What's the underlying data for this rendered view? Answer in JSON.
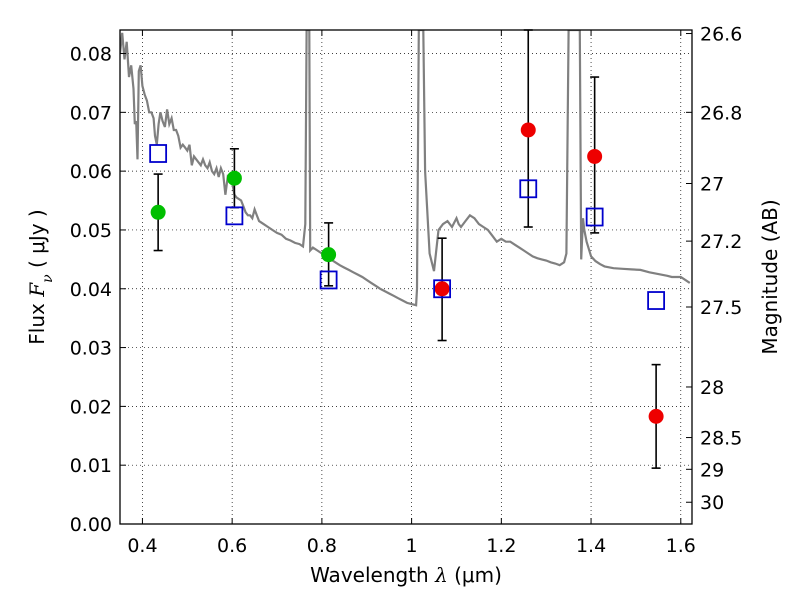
{
  "chart_data": {
    "type": "scatter",
    "xlabel": {
      "prefix": "Wavelength  ",
      "symbol": "λ",
      "unit": " (μm)"
    },
    "ylabel": {
      "prefix": "Flux  ",
      "symbol": "F",
      "sub": "ν",
      "unit": "  ( μJy )"
    },
    "y2label": "Magnitude (AB)",
    "xlim": [
      0.35,
      1.625
    ],
    "ylim": [
      0.0,
      0.084
    ],
    "grid": true,
    "x_ticks": [
      0.4,
      0.6,
      0.8,
      1.0,
      1.2,
      1.4,
      1.6
    ],
    "x_tick_labels": [
      "0.4",
      "0.6",
      "0.8",
      "1",
      "1.2",
      "1.4",
      "1.6"
    ],
    "y_ticks": [
      0.0,
      0.01,
      0.02,
      0.03,
      0.04,
      0.05,
      0.06,
      0.07,
      0.08
    ],
    "y_tick_labels": [
      "0.00",
      "0.01",
      "0.02",
      "0.03",
      "0.04",
      "0.05",
      "0.06",
      "0.07",
      "0.08"
    ],
    "y2_ticks": [
      {
        "label": "26.6",
        "flux": 0.0834
      },
      {
        "label": "26.8",
        "flux": 0.07
      },
      {
        "label": "27",
        "flux": 0.0579
      },
      {
        "label": "27.2",
        "flux": 0.0481
      },
      {
        "label": "27.5",
        "flux": 0.0369
      },
      {
        "label": "28",
        "flux": 0.0233
      },
      {
        "label": "28.5",
        "flux": 0.0147
      },
      {
        "label": "29",
        "flux": 0.0093
      },
      {
        "label": "30",
        "flux": 0.0037
      }
    ],
    "colors": {
      "green": "#00bf00",
      "red": "#ee0000",
      "blue": "#0000cc",
      "model": "#808080",
      "error": "#000000"
    },
    "series": [
      {
        "marker": "circle",
        "color": "green",
        "points": [
          {
            "x": 0.435,
            "y": 0.053,
            "lo": 0.0465,
            "hi": 0.0595
          },
          {
            "x": 0.605,
            "y": 0.0588,
            "lo": 0.0538,
            "hi": 0.0638
          },
          {
            "x": 0.815,
            "y": 0.0458,
            "lo": 0.0405,
            "hi": 0.0512
          }
        ]
      },
      {
        "marker": "circle",
        "color": "red",
        "points": [
          {
            "x": 1.068,
            "y": 0.04,
            "lo": 0.0312,
            "hi": 0.0486
          },
          {
            "x": 1.26,
            "y": 0.067,
            "lo": 0.0505,
            "hi": 0.084
          },
          {
            "x": 1.408,
            "y": 0.0625,
            "lo": 0.0495,
            "hi": 0.076
          },
          {
            "x": 1.545,
            "y": 0.0183,
            "lo": 0.0095,
            "hi": 0.0271
          }
        ]
      },
      {
        "marker": "open-square",
        "color": "blue",
        "points": [
          {
            "x": 0.435,
            "y": 0.063
          },
          {
            "x": 0.605,
            "y": 0.0524
          },
          {
            "x": 0.815,
            "y": 0.0415
          },
          {
            "x": 1.068,
            "y": 0.04
          },
          {
            "x": 1.26,
            "y": 0.057
          },
          {
            "x": 1.408,
            "y": 0.0522
          },
          {
            "x": 1.545,
            "y": 0.038
          }
        ]
      }
    ],
    "model_spectrum": [
      [
        0.35,
        0.08
      ],
      [
        0.355,
        0.0835
      ],
      [
        0.36,
        0.079
      ],
      [
        0.365,
        0.082
      ],
      [
        0.37,
        0.076
      ],
      [
        0.375,
        0.078
      ],
      [
        0.38,
        0.074
      ],
      [
        0.383,
        0.068
      ],
      [
        0.386,
        0.0685
      ],
      [
        0.389,
        0.062
      ],
      [
        0.392,
        0.077
      ],
      [
        0.396,
        0.078
      ],
      [
        0.4,
        0.0745
      ],
      [
        0.405,
        0.073
      ],
      [
        0.41,
        0.072
      ],
      [
        0.415,
        0.07
      ],
      [
        0.42,
        0.07
      ],
      [
        0.425,
        0.069
      ],
      [
        0.428,
        0.066
      ],
      [
        0.432,
        0.0645
      ],
      [
        0.436,
        0.068
      ],
      [
        0.44,
        0.07
      ],
      [
        0.445,
        0.0685
      ],
      [
        0.45,
        0.0675
      ],
      [
        0.455,
        0.0705
      ],
      [
        0.46,
        0.068
      ],
      [
        0.465,
        0.069
      ],
      [
        0.47,
        0.067
      ],
      [
        0.475,
        0.067
      ],
      [
        0.48,
        0.066
      ],
      [
        0.485,
        0.064
      ],
      [
        0.49,
        0.0645
      ],
      [
        0.495,
        0.064
      ],
      [
        0.5,
        0.0635
      ],
      [
        0.505,
        0.0645
      ],
      [
        0.51,
        0.061
      ],
      [
        0.515,
        0.0625
      ],
      [
        0.52,
        0.062
      ],
      [
        0.525,
        0.0615
      ],
      [
        0.53,
        0.061
      ],
      [
        0.535,
        0.062
      ],
      [
        0.54,
        0.061
      ],
      [
        0.545,
        0.0605
      ],
      [
        0.55,
        0.0615
      ],
      [
        0.555,
        0.06
      ],
      [
        0.56,
        0.0595
      ],
      [
        0.565,
        0.0605
      ],
      [
        0.57,
        0.059
      ],
      [
        0.575,
        0.0605
      ],
      [
        0.58,
        0.0595
      ],
      [
        0.585,
        0.056
      ],
      [
        0.59,
        0.059
      ],
      [
        0.595,
        0.0585
      ],
      [
        0.6,
        0.058
      ],
      [
        0.605,
        0.056
      ],
      [
        0.61,
        0.0555
      ],
      [
        0.62,
        0.055
      ],
      [
        0.625,
        0.054
      ],
      [
        0.63,
        0.053
      ],
      [
        0.635,
        0.0525
      ],
      [
        0.64,
        0.0525
      ],
      [
        0.645,
        0.052
      ],
      [
        0.65,
        0.0535
      ],
      [
        0.655,
        0.0525
      ],
      [
        0.66,
        0.0515
      ],
      [
        0.67,
        0.051
      ],
      [
        0.68,
        0.0505
      ],
      [
        0.69,
        0.05
      ],
      [
        0.7,
        0.0495
      ],
      [
        0.71,
        0.0492
      ],
      [
        0.72,
        0.0485
      ],
      [
        0.73,
        0.0482
      ],
      [
        0.74,
        0.0478
      ],
      [
        0.75,
        0.0476
      ],
      [
        0.758,
        0.0472
      ],
      [
        0.763,
        0.051
      ],
      [
        0.766,
        0.084
      ],
      [
        0.772,
        0.084
      ],
      [
        0.774,
        0.0465
      ],
      [
        0.78,
        0.047
      ],
      [
        0.79,
        0.0465
      ],
      [
        0.8,
        0.046
      ],
      [
        0.81,
        0.0455
      ],
      [
        0.82,
        0.045
      ],
      [
        0.83,
        0.0445
      ],
      [
        0.84,
        0.044
      ],
      [
        0.85,
        0.0436
      ],
      [
        0.86,
        0.0432
      ],
      [
        0.87,
        0.0428
      ],
      [
        0.88,
        0.0424
      ],
      [
        0.89,
        0.042
      ],
      [
        0.9,
        0.0415
      ],
      [
        0.91,
        0.041
      ],
      [
        0.92,
        0.0405
      ],
      [
        0.93,
        0.04
      ],
      [
        0.94,
        0.0396
      ],
      [
        0.95,
        0.0392
      ],
      [
        0.96,
        0.0388
      ],
      [
        0.97,
        0.0384
      ],
      [
        0.98,
        0.038
      ],
      [
        0.99,
        0.0376
      ],
      [
        1.0,
        0.0374
      ],
      [
        1.01,
        0.0372
      ],
      [
        1.012,
        0.04
      ],
      [
        1.016,
        0.084
      ],
      [
        1.026,
        0.084
      ],
      [
        1.03,
        0.06
      ],
      [
        1.04,
        0.046
      ],
      [
        1.05,
        0.043
      ],
      [
        1.06,
        0.05
      ],
      [
        1.07,
        0.051
      ],
      [
        1.08,
        0.0515
      ],
      [
        1.09,
        0.0505
      ],
      [
        1.1,
        0.052
      ],
      [
        1.105,
        0.051
      ],
      [
        1.11,
        0.0505
      ],
      [
        1.12,
        0.0515
      ],
      [
        1.13,
        0.0525
      ],
      [
        1.14,
        0.052
      ],
      [
        1.15,
        0.051
      ],
      [
        1.16,
        0.0505
      ],
      [
        1.17,
        0.05
      ],
      [
        1.18,
        0.049
      ],
      [
        1.19,
        0.048
      ],
      [
        1.2,
        0.0485
      ],
      [
        1.21,
        0.048
      ],
      [
        1.22,
        0.048
      ],
      [
        1.23,
        0.0475
      ],
      [
        1.24,
        0.047
      ],
      [
        1.25,
        0.0465
      ],
      [
        1.26,
        0.046
      ],
      [
        1.27,
        0.0455
      ],
      [
        1.28,
        0.0452
      ],
      [
        1.29,
        0.045
      ],
      [
        1.3,
        0.0448
      ],
      [
        1.31,
        0.0445
      ],
      [
        1.32,
        0.0443
      ],
      [
        1.33,
        0.044
      ],
      [
        1.34,
        0.0445
      ],
      [
        1.345,
        0.046
      ],
      [
        1.35,
        0.084
      ],
      [
        1.375,
        0.084
      ],
      [
        1.378,
        0.045
      ],
      [
        1.382,
        0.052
      ],
      [
        1.385,
        0.05
      ],
      [
        1.39,
        0.048
      ],
      [
        1.4,
        0.0455
      ],
      [
        1.41,
        0.0447
      ],
      [
        1.42,
        0.0442
      ],
      [
        1.43,
        0.0438
      ],
      [
        1.45,
        0.0435
      ],
      [
        1.47,
        0.0434
      ],
      [
        1.49,
        0.0433
      ],
      [
        1.51,
        0.0432
      ],
      [
        1.53,
        0.0428
      ],
      [
        1.55,
        0.0425
      ],
      [
        1.57,
        0.0422
      ],
      [
        1.58,
        0.042
      ],
      [
        1.6,
        0.042
      ],
      [
        1.61,
        0.0415
      ],
      [
        1.62,
        0.041
      ]
    ]
  }
}
